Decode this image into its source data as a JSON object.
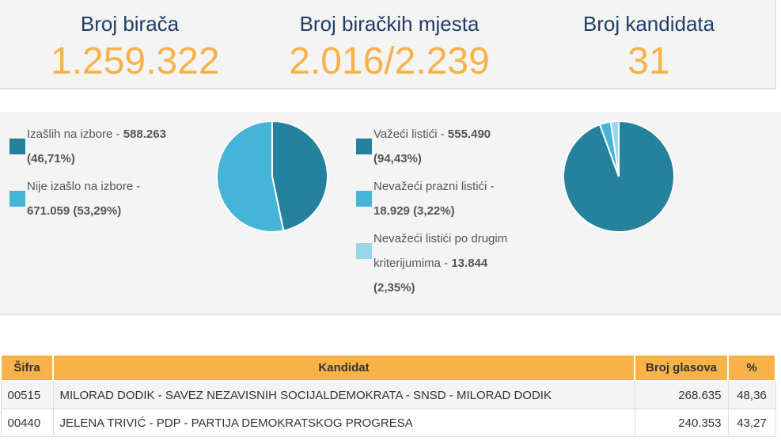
{
  "stats": {
    "voters_label": "Broj birača",
    "voters_value": "1.259.322",
    "stations_label": "Broj biračkih mjesta",
    "stations_value": "2.016/2.239",
    "candidates_label": "Broj kandidata",
    "candidates_value": "31"
  },
  "turnout": {
    "items": [
      {
        "label": "Izašlih na izbore - ",
        "value": "588.263",
        "pct": "(46,71%)",
        "color": "#24829c",
        "fraction": 0.4671
      },
      {
        "label": "Nije izašlo na izbore - ",
        "value": "671.059",
        "pct": "(53,29%)",
        "color": "#45b4d6",
        "fraction": 0.5329
      }
    ]
  },
  "ballots": {
    "items": [
      {
        "label": "Važeći listići - ",
        "value": "555.490",
        "pct": "(94,43%)",
        "color": "#24829c",
        "fraction": 0.9443
      },
      {
        "label": "Nevažeći prazni listići - ",
        "value": "18.929",
        "pct": "(3,22%)",
        "color": "#45b4d6",
        "fraction": 0.0322
      },
      {
        "label": "Nevažeći listići po drugim kriterijumima - ",
        "value": "13.844",
        "pct": "(2,35%)",
        "color": "#98d7ea",
        "fraction": 0.0235
      }
    ]
  },
  "table": {
    "headers": {
      "code": "Šifra",
      "candidate": "Kandidat",
      "votes": "Broj glasova",
      "pct": "%"
    },
    "rows": [
      {
        "code": "00515",
        "candidate": "MILORAD DODIK - SAVEZ NEZAVISNIH SOCIJALDEMOKRATA - SNSD - MILORAD DODIK",
        "votes": "268.635",
        "pct": "48,36"
      },
      {
        "code": "00440",
        "candidate": "JELENA TRIVIĆ - PDP - PARTIJA DEMOKRATSKOG PROGRESA",
        "votes": "240.353",
        "pct": "43,27"
      }
    ]
  }
}
